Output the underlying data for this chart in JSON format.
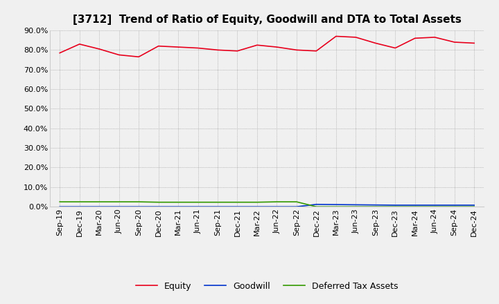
{
  "title": "[3712]  Trend of Ratio of Equity, Goodwill and DTA to Total Assets",
  "x_labels": [
    "Sep-19",
    "Dec-19",
    "Mar-20",
    "Jun-20",
    "Sep-20",
    "Dec-20",
    "Mar-21",
    "Jun-21",
    "Sep-21",
    "Dec-21",
    "Mar-22",
    "Jun-22",
    "Sep-22",
    "Dec-22",
    "Mar-23",
    "Jun-23",
    "Sep-23",
    "Dec-23",
    "Mar-24",
    "Jun-24",
    "Sep-24",
    "Dec-24"
  ],
  "equity": [
    78.5,
    83.0,
    80.5,
    77.5,
    76.5,
    82.0,
    81.5,
    81.0,
    80.0,
    79.5,
    82.5,
    81.5,
    80.0,
    79.5,
    87.0,
    86.5,
    83.5,
    81.0,
    86.0,
    86.5,
    84.0,
    83.5
  ],
  "goodwill": [
    0.0,
    0.0,
    0.0,
    0.0,
    0.0,
    0.0,
    0.0,
    0.0,
    0.0,
    0.0,
    0.0,
    0.0,
    0.0,
    1.2,
    1.1,
    1.0,
    0.9,
    0.8,
    0.8,
    0.8,
    0.8,
    0.8
  ],
  "dta": [
    2.5,
    2.5,
    2.5,
    2.5,
    2.5,
    2.3,
    2.3,
    2.3,
    2.3,
    2.3,
    2.3,
    2.5,
    2.5,
    0.0,
    0.0,
    0.0,
    0.0,
    0.0,
    0.0,
    0.0,
    0.0,
    0.0
  ],
  "equity_color": "#e8001c",
  "goodwill_color": "#0033cc",
  "dta_color": "#339900",
  "background_color": "#f0f0f0",
  "plot_bg_color": "#f0f0f0",
  "grid_color": "#999999",
  "ylim": [
    0,
    90
  ],
  "yticks": [
    0,
    10,
    20,
    30,
    40,
    50,
    60,
    70,
    80,
    90
  ],
  "legend_labels": [
    "Equity",
    "Goodwill",
    "Deferred Tax Assets"
  ],
  "title_fontsize": 11,
  "tick_fontsize": 8,
  "legend_fontsize": 9
}
